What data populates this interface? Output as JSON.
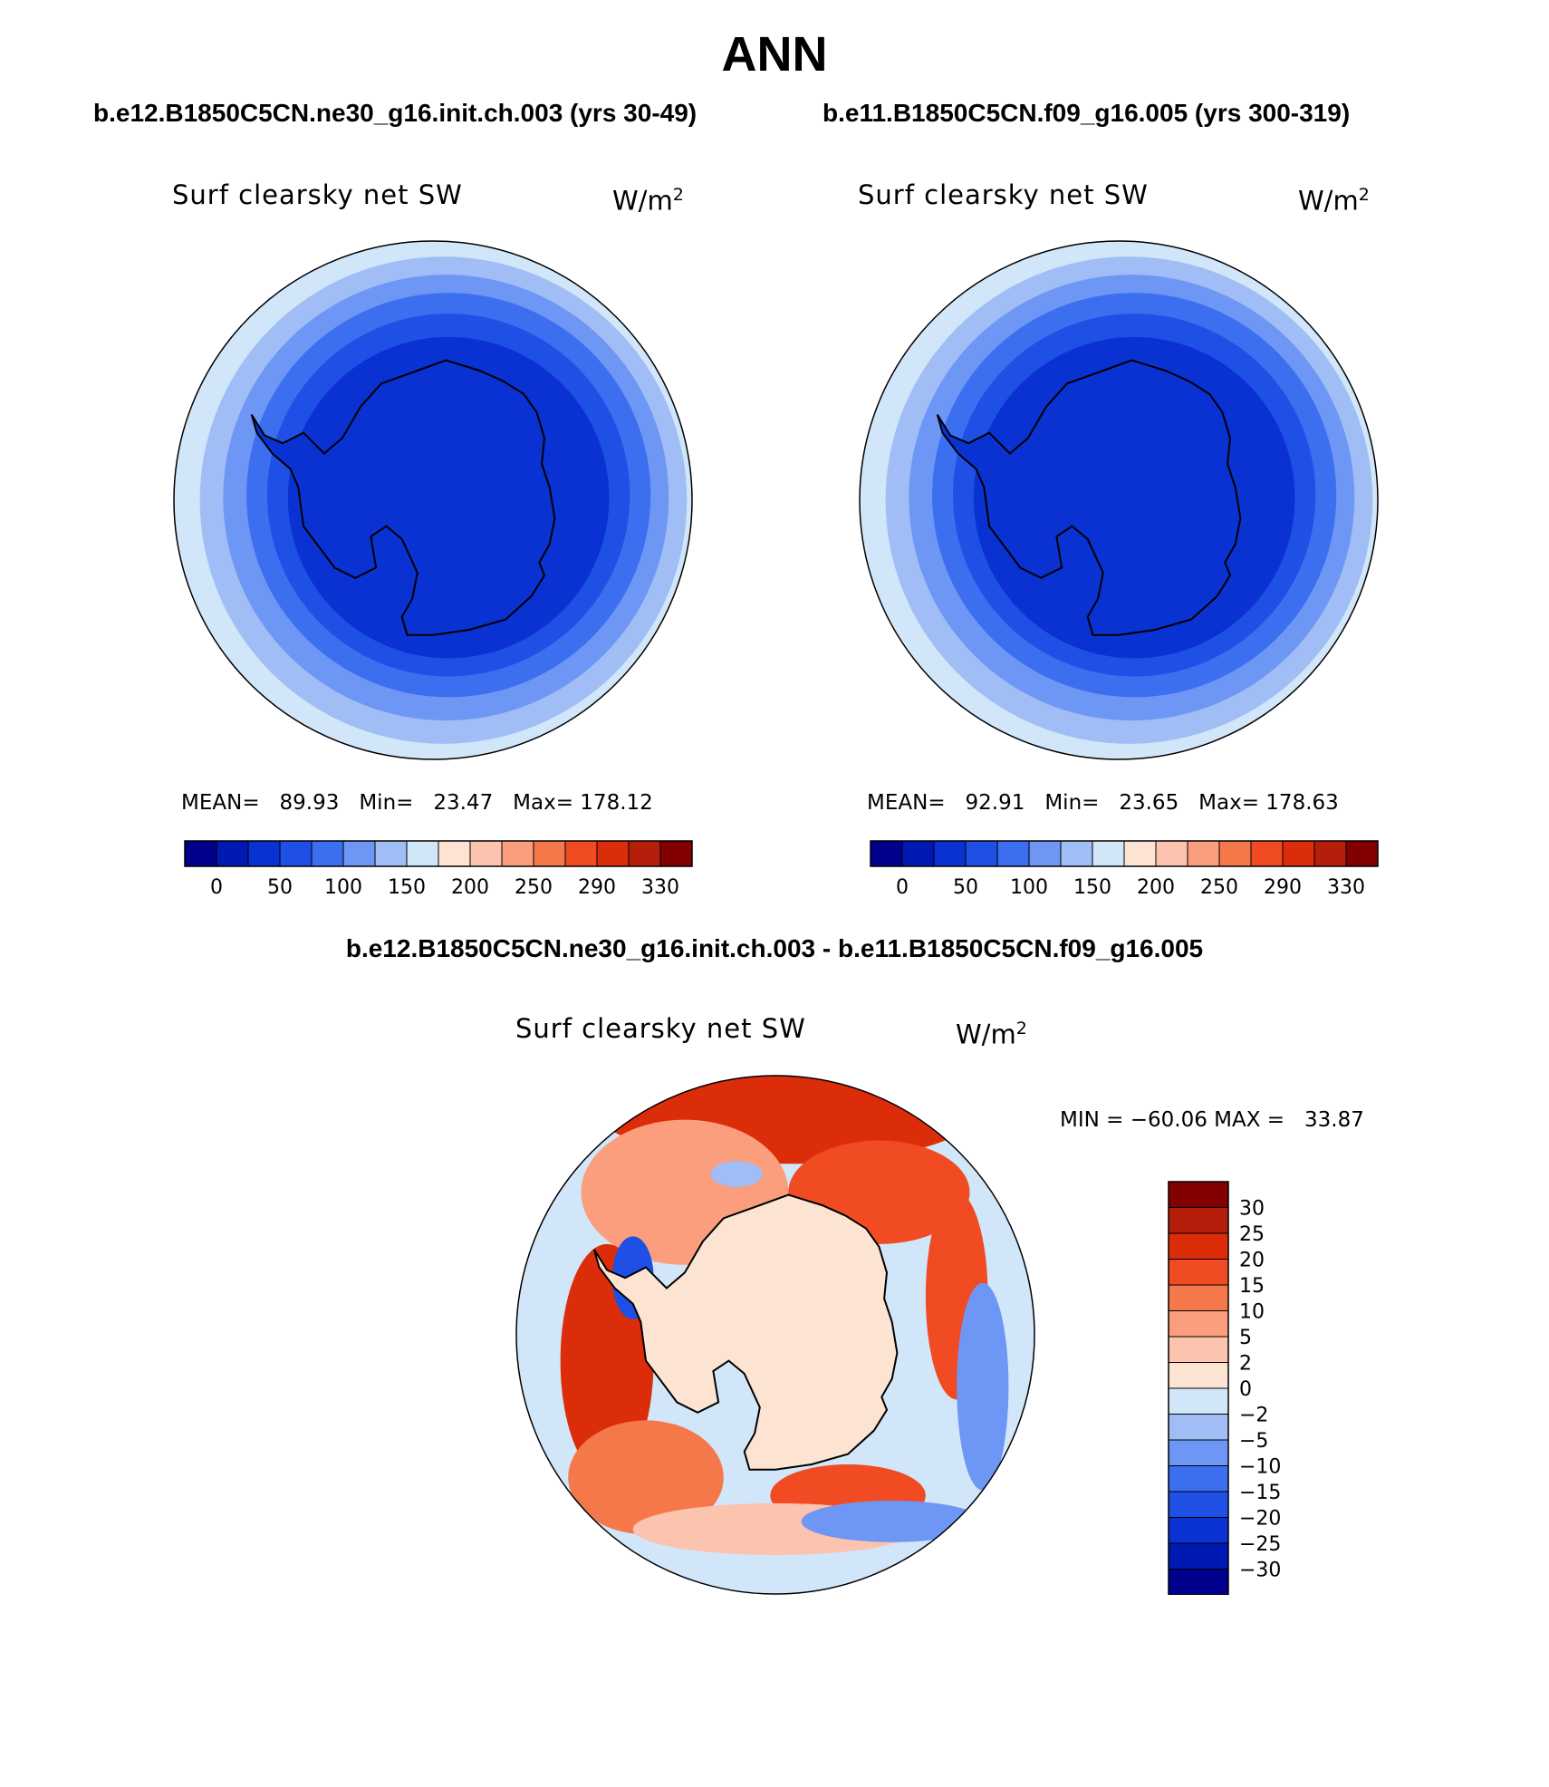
{
  "page": {
    "title": "ANN",
    "case1_title": "b.e12.B1850C5CN.ne30_g16.init.ch.003 (yrs 30-49)",
    "case2_title": "b.e11.B1850C5CN.f09_g16.005 (yrs 300-319)",
    "diff_title": "b.e12.B1850C5CN.ne30_g16.init.ch.003 - b.e11.B1850C5CN.f09_g16.005"
  },
  "panels": {
    "p1": {
      "variable": "Surf clearsky net SW",
      "units_base": "W/m",
      "units_exp": "2",
      "mean_label": "MEAN=",
      "mean_value": "89.93",
      "min_label": "Min=",
      "min_value": "23.47",
      "max_label": "Max=",
      "max_value": "178.12"
    },
    "p2": {
      "variable": "Surf clearsky net SW",
      "units_base": "W/m",
      "units_exp": "2",
      "mean_label": "MEAN=",
      "mean_value": "92.91",
      "min_label": "Min=",
      "min_value": "23.65",
      "max_label": "Max=",
      "max_value": "178.63"
    },
    "p3": {
      "variable": "Surf clearsky net SW",
      "units_base": "W/m",
      "units_exp": "2",
      "minmax_text": "MIN = −60.06 MAX =   33.87"
    }
  },
  "chart_data": [
    {
      "type": "heatmap",
      "projection": "south-polar-stereographic",
      "title": "Surf clearsky net SW",
      "units": "W/m2",
      "colorbar": {
        "orientation": "horizontal",
        "labels": [
          "0",
          "50",
          "100",
          "150",
          "200",
          "250",
          "290",
          "330"
        ],
        "colors": [
          "#00008c",
          "#0019b3",
          "#0a32d2",
          "#1e50e6",
          "#3c6ef0",
          "#6e96f5",
          "#a0bef5",
          "#d2e6fa",
          "#fce3d2",
          "#fcc3ae",
          "#fa9e7d",
          "#f5784b",
          "#f04b23",
          "#dc2d0a",
          "#b41e0a",
          "#820000"
        ]
      },
      "stats": {
        "mean": 89.93,
        "min": 23.47,
        "max": 178.12
      }
    },
    {
      "type": "heatmap",
      "projection": "south-polar-stereographic",
      "title": "Surf clearsky net SW",
      "units": "W/m2",
      "colorbar": {
        "orientation": "horizontal",
        "labels": [
          "0",
          "50",
          "100",
          "150",
          "200",
          "250",
          "290",
          "330"
        ],
        "colors": [
          "#00008c",
          "#0019b3",
          "#0a32d2",
          "#1e50e6",
          "#3c6ef0",
          "#6e96f5",
          "#a0bef5",
          "#d2e6fa",
          "#fce3d2",
          "#fcc3ae",
          "#fa9e7d",
          "#f5784b",
          "#f04b23",
          "#dc2d0a",
          "#b41e0a",
          "#820000"
        ]
      },
      "stats": {
        "mean": 92.91,
        "min": 23.65,
        "max": 178.63
      }
    },
    {
      "type": "heatmap",
      "projection": "south-polar-stereographic",
      "title": "Surf clearsky net SW",
      "units": "W/m2",
      "colorbar": {
        "orientation": "vertical",
        "labels": [
          "30",
          "25",
          "20",
          "15",
          "10",
          "5",
          "2",
          "0",
          "−2",
          "−5",
          "−10",
          "−15",
          "−20",
          "−25",
          "−30"
        ],
        "colors": [
          "#820000",
          "#b41e0a",
          "#dc2d0a",
          "#f04b23",
          "#f5784b",
          "#fa9e7d",
          "#fcc3ae",
          "#fce3d2",
          "#d2e6fa",
          "#a0bef5",
          "#6e96f5",
          "#3c6ef0",
          "#1e50e6",
          "#0a32d2",
          "#0019b3",
          "#00008c"
        ]
      },
      "stats": {
        "min": -60.06,
        "max": 33.87
      }
    }
  ]
}
